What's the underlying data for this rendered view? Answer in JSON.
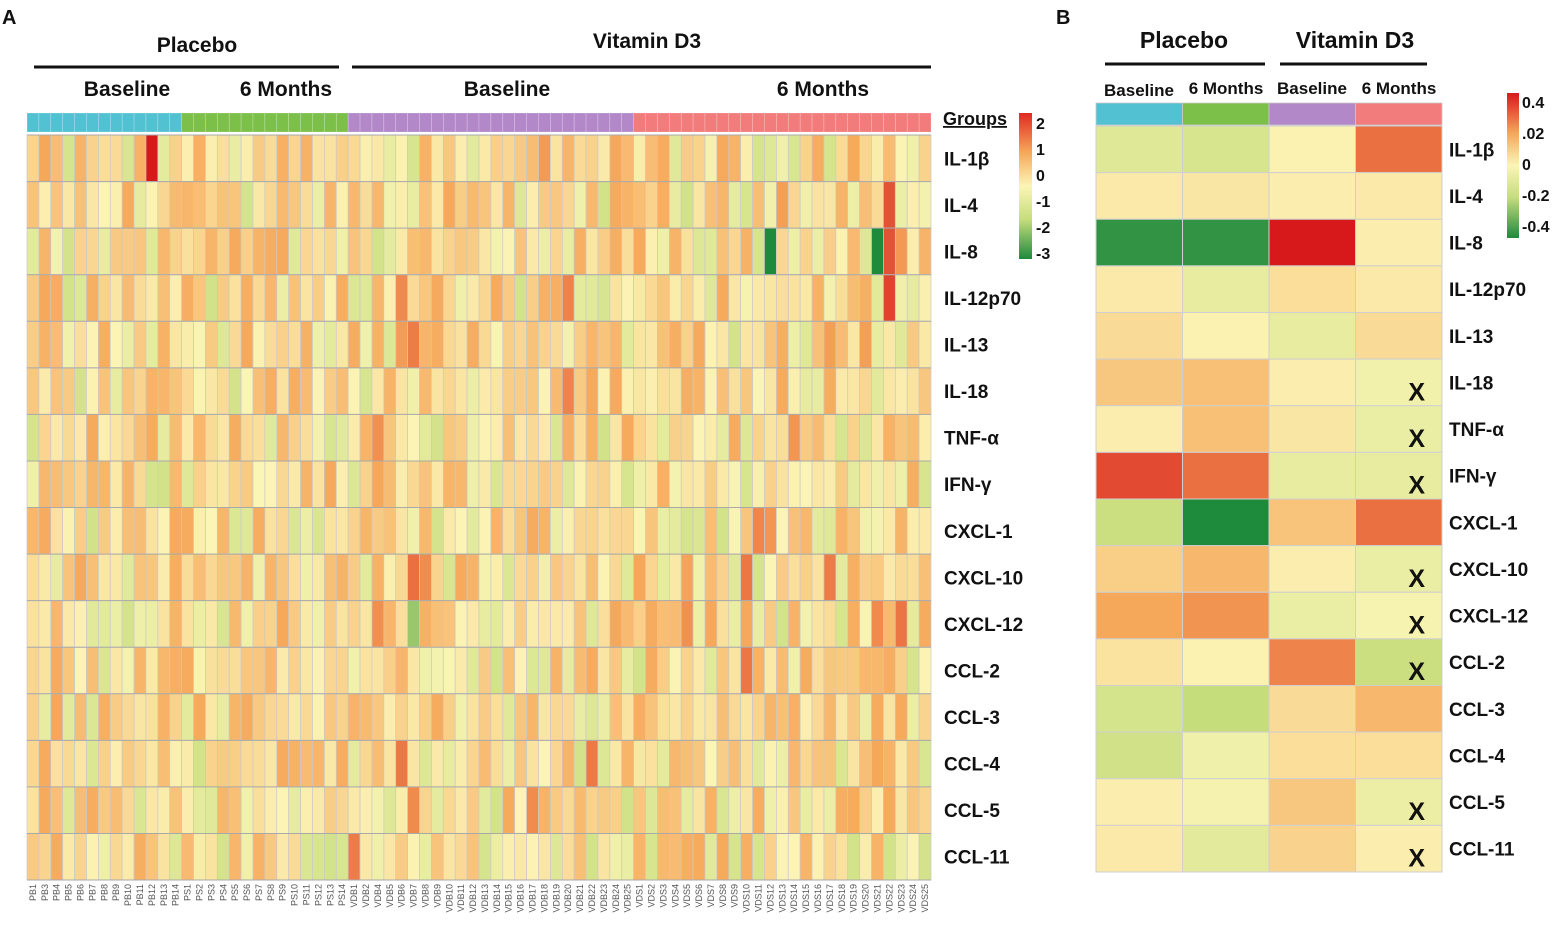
{
  "chart_data": [
    {
      "type": "heatmap",
      "panel_label": "A",
      "groups": [
        {
          "name": "Placebo",
          "timepoints": [
            "Baseline",
            "6 Months"
          ]
        },
        {
          "name": "Vitamin D3",
          "timepoints": [
            "Baseline",
            "6 Months"
          ]
        }
      ],
      "legend": {
        "title": "Groups",
        "ticks": [
          "2",
          "1",
          "0",
          "-1",
          "-2",
          "-3"
        ],
        "range": [
          -3,
          2
        ]
      },
      "rows": [
        "IL-1β",
        "IL-4",
        "IL-8",
        "IL-12p70",
        "IL-13",
        "IL-18",
        "TNF-α",
        "IFN-γ",
        "CXCL-1",
        "CXCL-10",
        "CXCL-12",
        "CCL-2",
        "CCL-3",
        "CCL-4",
        "CCL-5",
        "CCL-11"
      ],
      "columns": [
        "PB1",
        "PB3",
        "PB4",
        "PB5",
        "PB6",
        "PB7",
        "PB8",
        "PB9",
        "PB10",
        "PB11",
        "PB12",
        "PB13",
        "PB14",
        "PS1",
        "PS2",
        "PS3",
        "PS4",
        "PS5",
        "PS6",
        "PS7",
        "PS8",
        "PS9",
        "PS10",
        "PS11",
        "PS12",
        "PS13",
        "PS14",
        "VDB1",
        "VDB2",
        "VDB4",
        "VDB5",
        "VDB6",
        "VDB7",
        "VDB8",
        "VDB9",
        "VDB10",
        "VDB11",
        "VDB12",
        "VDB13",
        "VDB14",
        "VDB15",
        "VDB16",
        "VDB17",
        "VDB18",
        "VDB19",
        "VDB20",
        "VDB21",
        "VDB22",
        "VDB23",
        "VDB24",
        "VDB25",
        "VDS1",
        "VDS2",
        "VDS3",
        "VDS4",
        "VDS5",
        "VDS6",
        "VDS7",
        "VDS8",
        "VDS9",
        "VDS10",
        "VDS11",
        "VDS12",
        "VDS13",
        "VDS14",
        "VDS15",
        "VDS16",
        "VDS17",
        "VDS18",
        "VDS19",
        "VDS20",
        "VDS21",
        "VDS22",
        "VDS23",
        "VDS24",
        "VDS25"
      ],
      "column_groups": [
        {
          "label": "Baseline",
          "group": "Placebo",
          "count": 13,
          "color": "#52c1d1"
        },
        {
          "label": "6 Months",
          "group": "Placebo",
          "count": 14,
          "color": "#7cc04a"
        },
        {
          "label": "Baseline",
          "group": "Vitamin D3",
          "count": 24,
          "color": "#b388c9"
        },
        {
          "label": "6 Months",
          "group": "Vitamin D3",
          "count": 25,
          "color": "#f27b7b"
        }
      ],
      "highlighted_values": [
        {
          "row": "IL-1β",
          "column": "PB12",
          "value": 2.2
        },
        {
          "row": "IL-8",
          "column": "VDS12",
          "value": -3.0
        },
        {
          "row": "IL-8",
          "column": "VDS21",
          "value": -3.0
        },
        {
          "row": "IL-8",
          "column": "VDS22",
          "value": 1.6
        },
        {
          "row": "IL-4",
          "column": "VDS22",
          "value": 1.6
        },
        {
          "row": "IL-12p70",
          "column": "VDS22",
          "value": 1.7
        },
        {
          "row": "IL-13",
          "column": "VDB7",
          "value": 1.3
        },
        {
          "row": "CXCL-10",
          "column": "VDB7",
          "value": 1.4
        },
        {
          "row": "CXCL-12",
          "column": "VDB7",
          "value": -2.0
        },
        {
          "row": "CCL-5",
          "column": "VDB7",
          "value": 1.2
        }
      ]
    },
    {
      "type": "heatmap",
      "panel_label": "B",
      "groups": [
        {
          "name": "Placebo",
          "timepoints": [
            "Baseline",
            "6 Months"
          ]
        },
        {
          "name": "Vitamin D3",
          "timepoints": [
            "Baseline",
            "6 Months"
          ]
        }
      ],
      "legend": {
        "ticks": [
          "0.4",
          ".02",
          "0",
          "-0.2",
          "-0.4"
        ],
        "range": [
          -0.4,
          0.4
        ]
      },
      "columns": [
        "Placebo Baseline",
        "Placebo 6 Months",
        "Vitamin D3 Baseline",
        "Vitamin D3 6 Months"
      ],
      "column_colors": [
        "#52c1d1",
        "#7cc04a",
        "#b388c9",
        "#f27b7b"
      ],
      "rows": [
        "IL-1β",
        "IL-4",
        "IL-8",
        "IL-12p70",
        "IL-13",
        "IL-18",
        "TNF-α",
        "IFN-γ",
        "CXCL-1",
        "CXCL-10",
        "CXCL-12",
        "CCL-2",
        "CCL-3",
        "CCL-4",
        "CCL-5",
        "CCL-11"
      ],
      "values": [
        [
          -0.12,
          -0.15,
          0.01,
          0.28
        ],
        [
          0.03,
          0.04,
          0.02,
          0.03
        ],
        [
          -0.38,
          -0.38,
          0.4,
          0.02
        ],
        [
          0.03,
          -0.08,
          0.06,
          0.03
        ],
        [
          0.07,
          0.01,
          -0.08,
          0.07
        ],
        [
          0.12,
          0.14,
          0.02,
          -0.04
        ],
        [
          0.02,
          0.14,
          0.04,
          -0.07
        ],
        [
          0.33,
          0.28,
          -0.08,
          -0.08
        ],
        [
          -0.2,
          -0.48,
          0.13,
          0.28
        ],
        [
          0.1,
          0.16,
          0.02,
          -0.07
        ],
        [
          0.2,
          0.23,
          -0.07,
          -0.02
        ],
        [
          0.05,
          0.01,
          0.25,
          -0.2
        ],
        [
          -0.16,
          -0.22,
          0.07,
          0.16
        ],
        [
          -0.18,
          -0.05,
          0.06,
          0.06
        ],
        [
          0.02,
          -0.03,
          0.12,
          -0.06
        ],
        [
          0.03,
          -0.1,
          0.09,
          0.02
        ]
      ],
      "significance_marks": [
        {
          "row": "IL-18",
          "column": "Vitamin D3 6 Months",
          "mark": "X"
        },
        {
          "row": "TNF-α",
          "column": "Vitamin D3 6 Months",
          "mark": "X"
        },
        {
          "row": "IFN-γ",
          "column": "Vitamin D3 6 Months",
          "mark": "X"
        },
        {
          "row": "CXCL-10",
          "column": "Vitamin D3 6 Months",
          "mark": "X"
        },
        {
          "row": "CXCL-12",
          "column": "Vitamin D3 6 Months",
          "mark": "X"
        },
        {
          "row": "CCL-2",
          "column": "Vitamin D3 6 Months",
          "mark": "X"
        },
        {
          "row": "CCL-5",
          "column": "Vitamin D3 6 Months",
          "mark": "X"
        },
        {
          "row": "CCL-11",
          "column": "Vitamin D3 6 Months",
          "mark": "X"
        }
      ]
    }
  ]
}
